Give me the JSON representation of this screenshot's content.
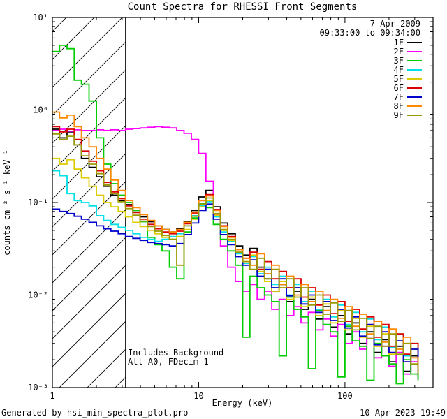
{
  "title": "Count Spectra for RHESSI Front Segments",
  "header": {
    "date": "7-Apr-2009",
    "interval": "09:33:00 to 09:34:00"
  },
  "annotations": {
    "line1": "Includes Background",
    "line2": "Att A0, FDecim 1"
  },
  "footer": {
    "left": "Generated by hsi_min_spectra_plot.pro",
    "right": "10-Apr-2023 19:49"
  },
  "axes": {
    "x_label": "Energy (keV)",
    "y_label": "counts cm⁻² s⁻¹ keV⁻¹",
    "x_ticks": [
      {
        "value": 1,
        "label": "1"
      },
      {
        "value": 10,
        "label": "10"
      },
      {
        "value": 100,
        "label": "100"
      }
    ],
    "y_ticks": [
      {
        "value": 0.001,
        "label": "10⁻³"
      },
      {
        "value": 0.01,
        "label": "10⁻²"
      },
      {
        "value": 0.1,
        "label": "10⁻¹"
      },
      {
        "value": 1,
        "label": "10⁰"
      },
      {
        "value": 10,
        "label": "10¹"
      }
    ]
  },
  "hatch_region": {
    "x_min": 1,
    "x_max": 3.16
  },
  "chart_data": {
    "type": "line",
    "x_scale": "log",
    "y_scale": "log",
    "x_range": [
      1,
      400
    ],
    "y_range": [
      0.001,
      10
    ],
    "legend_position": "top-right",
    "energies": [
      1.0,
      1.12,
      1.26,
      1.41,
      1.58,
      1.78,
      2.0,
      2.24,
      2.51,
      2.82,
      3.16,
      3.55,
      3.98,
      4.47,
      5.01,
      5.62,
      6.31,
      7.08,
      7.94,
      8.91,
      10.0,
      11.2,
      12.6,
      14.1,
      15.8,
      17.8,
      20.0,
      22.4,
      25.1,
      28.2,
      31.6,
      35.5,
      39.8,
      44.7,
      50.1,
      56.2,
      63.1,
      70.8,
      79.4,
      89.1,
      100,
      112,
      126,
      141,
      158,
      178,
      200,
      224,
      251,
      282,
      316
    ],
    "series": [
      {
        "name": "1F",
        "color": "#000000",
        "values": [
          0.62,
          0.5,
          0.58,
          0.42,
          0.3,
          0.24,
          0.19,
          0.15,
          0.12,
          0.105,
          0.095,
          0.082,
          0.07,
          0.062,
          0.056,
          0.051,
          0.048,
          0.052,
          0.062,
          0.082,
          0.115,
          0.135,
          0.09,
          0.06,
          0.046,
          0.034,
          0.027,
          0.032,
          0.02,
          0.015,
          0.011,
          0.013,
          0.0085,
          0.011,
          0.007,
          0.009,
          0.0055,
          0.0075,
          0.0045,
          0.006,
          0.0038,
          0.005,
          0.003,
          0.004,
          0.0024,
          0.0033,
          0.0019,
          0.0028,
          0.0015,
          0.0022,
          0.0013
        ]
      },
      {
        "name": "2F",
        "color": "#ff00ff",
        "values": [
          0.6,
          0.62,
          0.59,
          0.61,
          0.6,
          0.6,
          0.61,
          0.6,
          0.61,
          0.6,
          0.62,
          0.63,
          0.64,
          0.65,
          0.66,
          0.65,
          0.64,
          0.6,
          0.56,
          0.48,
          0.34,
          0.17,
          0.075,
          0.034,
          0.02,
          0.014,
          0.011,
          0.013,
          0.009,
          0.011,
          0.007,
          0.009,
          0.006,
          0.0075,
          0.005,
          0.0065,
          0.0042,
          0.0055,
          0.0036,
          0.0048,
          0.003,
          0.004,
          0.0026,
          0.0034,
          0.0021,
          0.0028,
          0.0017,
          0.0024,
          0.0014,
          0.0019,
          0.0012
        ]
      },
      {
        "name": "3F",
        "color": "#00cc00",
        "values": [
          4.3,
          5.0,
          4.6,
          2.1,
          1.9,
          1.25,
          0.5,
          0.26,
          0.16,
          0.12,
          0.1,
          0.082,
          0.062,
          0.042,
          0.035,
          0.03,
          0.02,
          0.015,
          0.048,
          0.068,
          0.098,
          0.088,
          0.058,
          0.04,
          0.03,
          0.021,
          0.0035,
          0.016,
          0.012,
          0.01,
          0.0085,
          0.0022,
          0.0095,
          0.007,
          0.0058,
          0.0016,
          0.0068,
          0.0048,
          0.004,
          0.0013,
          0.0046,
          0.0032,
          0.0028,
          0.0012,
          0.003,
          0.0022,
          0.0018,
          0.0011,
          0.002,
          0.0014,
          0.0012
        ]
      },
      {
        "name": "4F",
        "color": "#00e0e6",
        "values": [
          0.22,
          0.195,
          0.125,
          0.105,
          0.1,
          0.092,
          0.072,
          0.064,
          0.058,
          0.054,
          0.05,
          0.046,
          0.042,
          0.04,
          0.038,
          0.04,
          0.043,
          0.046,
          0.056,
          0.072,
          0.092,
          0.102,
          0.07,
          0.048,
          0.038,
          0.028,
          0.022,
          0.026,
          0.017,
          0.02,
          0.013,
          0.016,
          0.01,
          0.013,
          0.0085,
          0.011,
          0.007,
          0.009,
          0.0058,
          0.0078,
          0.0048,
          0.0065,
          0.004,
          0.0055,
          0.0033,
          0.0045,
          0.0027,
          0.0038,
          0.0022,
          0.003,
          0.0018
        ]
      },
      {
        "name": "5F",
        "color": "#ddcc00",
        "values": [
          0.3,
          0.26,
          0.29,
          0.23,
          0.185,
          0.15,
          0.12,
          0.1,
          0.09,
          0.08,
          0.07,
          0.061,
          0.055,
          0.05,
          0.046,
          0.042,
          0.04,
          0.043,
          0.051,
          0.066,
          0.09,
          0.105,
          0.073,
          0.05,
          0.039,
          0.029,
          0.023,
          0.027,
          0.018,
          0.014,
          0.011,
          0.014,
          0.009,
          0.012,
          0.0075,
          0.0095,
          0.006,
          0.008,
          0.005,
          0.0068,
          0.0042,
          0.0056,
          0.0035,
          0.0046,
          0.0028,
          0.0038,
          0.0023,
          0.0032,
          0.0019,
          0.0026,
          0.0015
        ]
      },
      {
        "name": "6F",
        "color": "#dd0000",
        "values": [
          0.66,
          0.58,
          0.62,
          0.48,
          0.36,
          0.28,
          0.22,
          0.165,
          0.13,
          0.11,
          0.092,
          0.078,
          0.066,
          0.058,
          0.052,
          0.048,
          0.046,
          0.049,
          0.059,
          0.077,
          0.105,
          0.122,
          0.084,
          0.056,
          0.043,
          0.031,
          0.025,
          0.029,
          0.019,
          0.023,
          0.015,
          0.018,
          0.012,
          0.015,
          0.0095,
          0.012,
          0.0078,
          0.01,
          0.0063,
          0.0085,
          0.0052,
          0.007,
          0.0043,
          0.0058,
          0.0035,
          0.0048,
          0.0028,
          0.0038,
          0.0023,
          0.003,
          0.0018
        ]
      },
      {
        "name": "7F",
        "color": "#0000cc",
        "values": [
          0.085,
          0.08,
          0.076,
          0.071,
          0.066,
          0.061,
          0.056,
          0.052,
          0.049,
          0.046,
          0.043,
          0.041,
          0.039,
          0.037,
          0.036,
          0.035,
          0.034,
          0.036,
          0.045,
          0.06,
          0.082,
          0.096,
          0.066,
          0.045,
          0.035,
          0.026,
          0.021,
          0.024,
          0.016,
          0.019,
          0.012,
          0.015,
          0.0098,
          0.012,
          0.008,
          0.01,
          0.0065,
          0.0085,
          0.0053,
          0.007,
          0.0044,
          0.0058,
          0.0036,
          0.0048,
          0.0029,
          0.004,
          0.0024,
          0.0032,
          0.0019,
          0.0026,
          0.0015
        ]
      },
      {
        "name": "8F",
        "color": "#ff8800",
        "values": [
          0.95,
          0.82,
          0.88,
          0.66,
          0.5,
          0.4,
          0.3,
          0.23,
          0.175,
          0.135,
          0.105,
          0.088,
          0.074,
          0.064,
          0.056,
          0.051,
          0.048,
          0.051,
          0.061,
          0.079,
          0.105,
          0.118,
          0.082,
          0.055,
          0.042,
          0.031,
          0.025,
          0.021,
          0.028,
          0.017,
          0.021,
          0.013,
          0.016,
          0.01,
          0.013,
          0.0085,
          0.011,
          0.0068,
          0.009,
          0.0056,
          0.0075,
          0.0046,
          0.0062,
          0.0038,
          0.0052,
          0.0031,
          0.0043,
          0.0026,
          0.0035,
          0.0021,
          0.0016
        ]
      },
      {
        "name": "9F",
        "color": "#9a9a00",
        "values": [
          0.55,
          0.48,
          0.52,
          0.42,
          0.32,
          0.26,
          0.205,
          0.155,
          0.125,
          0.102,
          0.086,
          0.073,
          0.063,
          0.055,
          0.049,
          0.044,
          0.04,
          0.021,
          0.056,
          0.071,
          0.096,
          0.112,
          0.076,
          0.051,
          0.04,
          0.029,
          0.023,
          0.019,
          0.025,
          0.015,
          0.019,
          0.012,
          0.015,
          0.0095,
          0.012,
          0.0078,
          0.01,
          0.0062,
          0.0082,
          0.0052,
          0.0068,
          0.0042,
          0.0056,
          0.0034,
          0.0046,
          0.0028,
          0.0038,
          0.0023,
          0.003,
          0.0018,
          0.0014
        ]
      }
    ]
  }
}
